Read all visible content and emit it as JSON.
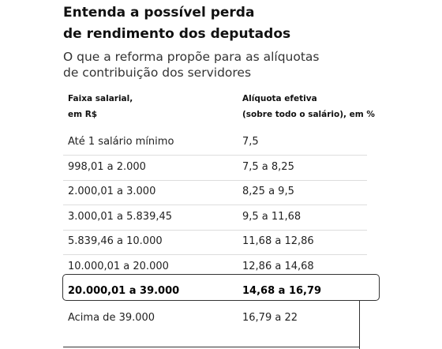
{
  "header": {
    "title": [
      "Entenda a possível perda",
      "de rendimento dos deputados"
    ],
    "subtitle": [
      "O que a reforma propõe para as alíquotas",
      "de contribuição dos servidores"
    ]
  },
  "table": {
    "columns": [
      [
        "Faixa salarial,",
        "em R$"
      ],
      [
        "Alíquota efetiva",
        "(sobre todo o salário), em %"
      ]
    ],
    "rows": [
      [
        "Até 1 salário mínimo",
        "7,5"
      ],
      [
        "998,01 a 2.000",
        "7,5 a 8,25"
      ],
      [
        "2.000,01 a 3.000",
        "8,25 a 9,5"
      ],
      [
        "3.000,01 a 5.839,45",
        "9,5 a 11,68"
      ],
      [
        "5.839,46 a 10.000",
        "11,68 a 12,86"
      ],
      [
        "10.000,01 a 20.000",
        "12,86 a 14,68"
      ],
      [
        "20.000,01 a 39.000",
        "14,68 a 16,79"
      ],
      [
        "Acima de 39.000",
        "16,79 a 22"
      ]
    ],
    "highlighted_row": 6
  }
}
